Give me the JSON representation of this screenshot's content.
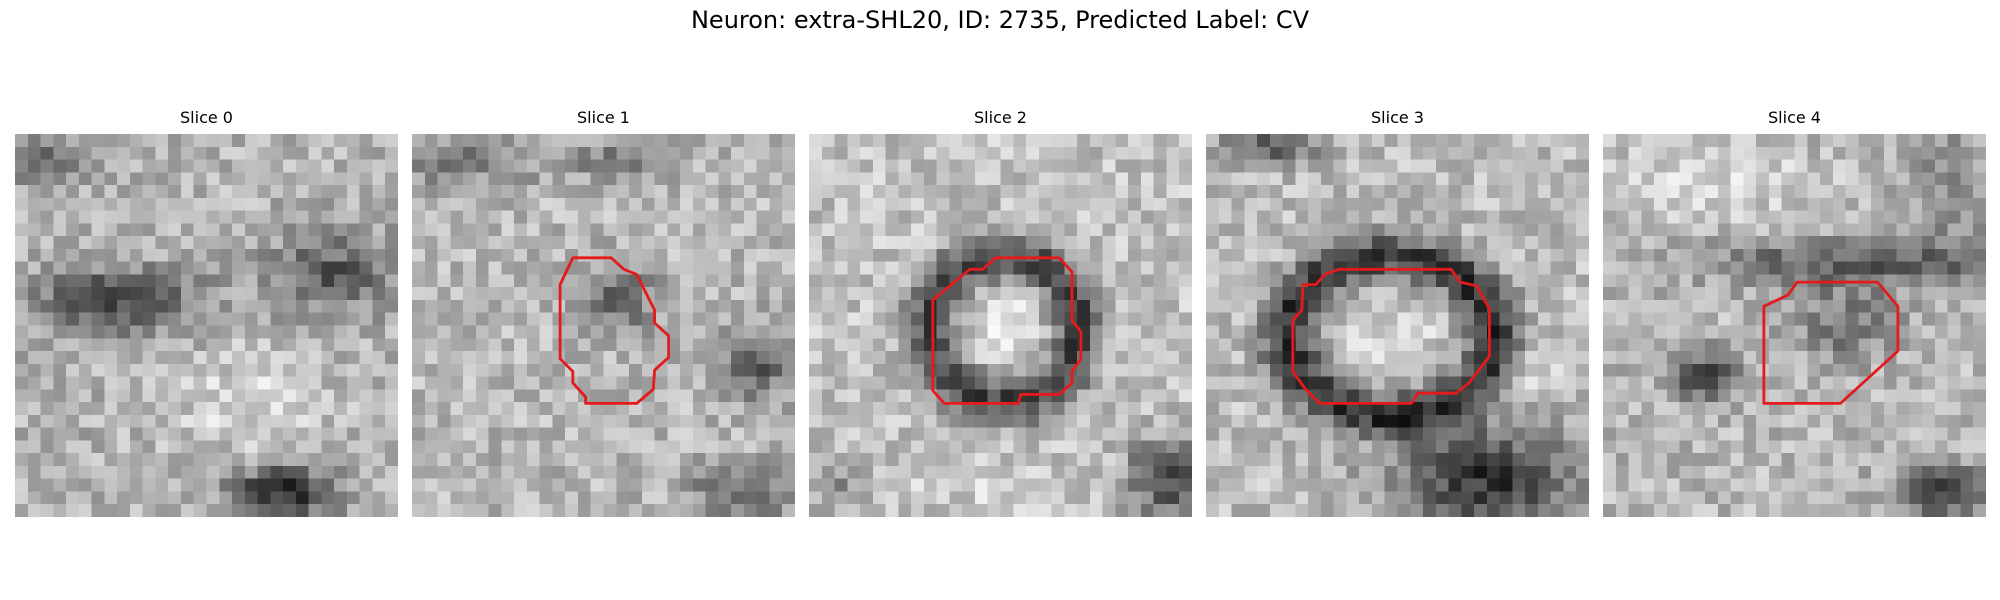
{
  "figure": {
    "title": "Neuron: extra-SHL20, ID: 2735, Predicted Label: CV"
  },
  "panels": [
    {
      "title": "Slice 0",
      "has_contour": false
    },
    {
      "title": "Slice 1",
      "has_contour": true
    },
    {
      "title": "Slice 2",
      "has_contour": true
    },
    {
      "title": "Slice 3",
      "has_contour": true
    },
    {
      "title": "Slice 4",
      "has_contour": true
    }
  ],
  "colors": {
    "contour": "#e41a1c",
    "background": "#ffffff"
  }
}
